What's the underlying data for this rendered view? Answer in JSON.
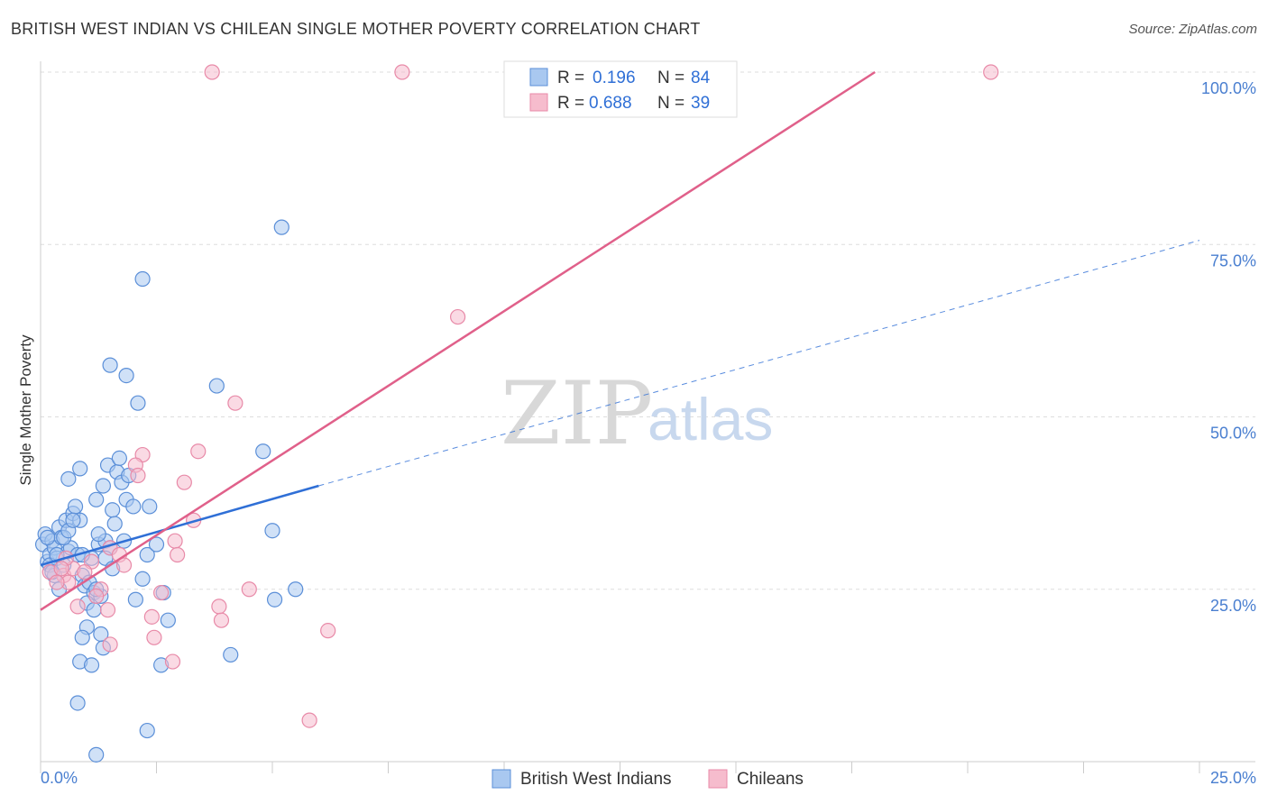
{
  "title": "BRITISH WEST INDIAN VS CHILEAN SINGLE MOTHER POVERTY CORRELATION CHART",
  "source": "Source: ZipAtlas.com",
  "watermark": {
    "zip": "ZIP",
    "atlas": "atlas"
  },
  "colors": {
    "blue_fill": "#a9c8f0",
    "blue_stroke": "#5b8fd8",
    "blue_line": "#2f6fd6",
    "pink_fill": "#f6bccd",
    "pink_stroke": "#e88aa8",
    "pink_line": "#e0608a",
    "grid": "#dddddd",
    "tick_label": "#4a7fd0"
  },
  "legend": {
    "rows": [
      {
        "r_label": "R =",
        "r_value": "0.196",
        "n_label": "N =",
        "n_value": "84"
      },
      {
        "r_label": "R =",
        "r_value": "0.688",
        "n_label": "N =",
        "n_value": "39"
      }
    ]
  },
  "chart_data": {
    "type": "scatter",
    "title": "BRITISH WEST INDIAN VS CHILEAN SINGLE MOTHER POVERTY CORRELATION CHART",
    "xlabel": "",
    "ylabel": "Single Mother Poverty",
    "xlim": [
      0,
      25
    ],
    "ylim": [
      0,
      100
    ],
    "x_tick_labels": [
      "0.0%",
      "25.0%"
    ],
    "y_tick_labels": [
      "25.0%",
      "50.0%",
      "75.0%",
      "100.0%"
    ],
    "y_ticks": [
      25,
      50,
      75,
      100
    ],
    "series": [
      {
        "name": "British West Indians",
        "r": 0.196,
        "n": 84,
        "trend": {
          "x": [
            0,
            6.0
          ],
          "y": [
            28.5,
            40.0
          ],
          "dashed_extension_to": [
            25,
            75.6
          ]
        },
        "points": [
          [
            0.05,
            31.5
          ],
          [
            0.1,
            33
          ],
          [
            0.15,
            29
          ],
          [
            0.2,
            30
          ],
          [
            0.25,
            32
          ],
          [
            0.3,
            31
          ],
          [
            0.35,
            29.5
          ],
          [
            0.4,
            34
          ],
          [
            0.45,
            32.5
          ],
          [
            0.5,
            28.5
          ],
          [
            0.55,
            35
          ],
          [
            0.6,
            30.5
          ],
          [
            0.65,
            31
          ],
          [
            0.7,
            36
          ],
          [
            0.75,
            37
          ],
          [
            0.8,
            30
          ],
          [
            0.85,
            35
          ],
          [
            0.9,
            27
          ],
          [
            0.95,
            25.5
          ],
          [
            1.0,
            19.5
          ],
          [
            1.05,
            26
          ],
          [
            1.1,
            29.5
          ],
          [
            1.15,
            24.5
          ],
          [
            1.2,
            38
          ],
          [
            1.25,
            31.5
          ],
          [
            1.3,
            24
          ],
          [
            1.35,
            16.5
          ],
          [
            1.4,
            32
          ],
          [
            1.45,
            43
          ],
          [
            1.5,
            31
          ],
          [
            1.55,
            36.5
          ],
          [
            1.6,
            34.5
          ],
          [
            1.65,
            42
          ],
          [
            1.7,
            44
          ],
          [
            1.75,
            40.5
          ],
          [
            1.8,
            32
          ],
          [
            1.85,
            38
          ],
          [
            1.9,
            41.5
          ],
          [
            2.0,
            37
          ],
          [
            2.05,
            23.5
          ],
          [
            2.1,
            52
          ],
          [
            2.2,
            26.5
          ],
          [
            2.3,
            30
          ],
          [
            2.35,
            37
          ],
          [
            2.5,
            31.5
          ],
          [
            2.6,
            14
          ],
          [
            2.65,
            24.5
          ],
          [
            2.75,
            20.5
          ],
          [
            1.5,
            57.5
          ],
          [
            1.85,
            56
          ],
          [
            2.2,
            70
          ],
          [
            3.8,
            54.5
          ],
          [
            4.8,
            45
          ],
          [
            5.0,
            33.5
          ],
          [
            5.05,
            23.5
          ],
          [
            5.5,
            25
          ],
          [
            5.2,
            77.5
          ],
          [
            4.1,
            15.5
          ],
          [
            0.9,
            18
          ],
          [
            0.85,
            14.5
          ],
          [
            1.1,
            14
          ],
          [
            1.2,
            1
          ],
          [
            2.3,
            4.5
          ],
          [
            0.8,
            8.5
          ],
          [
            1.3,
            18.5
          ],
          [
            0.2,
            28.5
          ],
          [
            0.3,
            27
          ],
          [
            0.4,
            25
          ],
          [
            0.5,
            32.5
          ],
          [
            0.6,
            33.5
          ],
          [
            0.7,
            35
          ],
          [
            0.15,
            32.5
          ],
          [
            1.0,
            23
          ],
          [
            1.2,
            25
          ],
          [
            1.25,
            33
          ],
          [
            1.4,
            29.5
          ],
          [
            1.55,
            28
          ],
          [
            0.9,
            30
          ],
          [
            1.15,
            22
          ],
          [
            0.6,
            41
          ],
          [
            0.85,
            42.5
          ],
          [
            1.35,
            40
          ],
          [
            0.25,
            27.5
          ],
          [
            0.35,
            30
          ]
        ]
      },
      {
        "name": "Chileans",
        "r": 0.688,
        "n": 39,
        "trend": {
          "x": [
            0,
            18.0
          ],
          "y": [
            22.0,
            100.0
          ]
        },
        "points": [
          [
            3.7,
            100
          ],
          [
            7.8,
            100
          ],
          [
            20.5,
            100
          ],
          [
            9.0,
            64.5
          ],
          [
            4.2,
            52
          ],
          [
            3.4,
            45
          ],
          [
            2.2,
            44.5
          ],
          [
            2.05,
            43
          ],
          [
            2.1,
            41.5
          ],
          [
            3.1,
            40.5
          ],
          [
            3.3,
            35
          ],
          [
            2.9,
            32
          ],
          [
            2.95,
            30
          ],
          [
            1.5,
            31
          ],
          [
            1.7,
            30
          ],
          [
            1.8,
            28.5
          ],
          [
            0.5,
            27
          ],
          [
            0.6,
            26
          ],
          [
            0.7,
            28
          ],
          [
            0.2,
            27.5
          ],
          [
            1.1,
            29
          ],
          [
            1.3,
            25
          ],
          [
            1.45,
            22
          ],
          [
            0.8,
            22.5
          ],
          [
            1.5,
            17
          ],
          [
            2.4,
            21
          ],
          [
            2.45,
            18
          ],
          [
            2.6,
            24.5
          ],
          [
            2.85,
            14.5
          ],
          [
            3.85,
            22.5
          ],
          [
            3.9,
            20.5
          ],
          [
            4.5,
            25
          ],
          [
            6.2,
            19
          ],
          [
            5.8,
            6
          ],
          [
            0.35,
            26
          ],
          [
            0.55,
            29.5
          ],
          [
            0.95,
            27.5
          ],
          [
            1.2,
            24
          ],
          [
            0.45,
            28
          ]
        ]
      }
    ]
  },
  "bottom_legend": [
    {
      "label": "British West Indians"
    },
    {
      "label": "Chileans"
    }
  ]
}
